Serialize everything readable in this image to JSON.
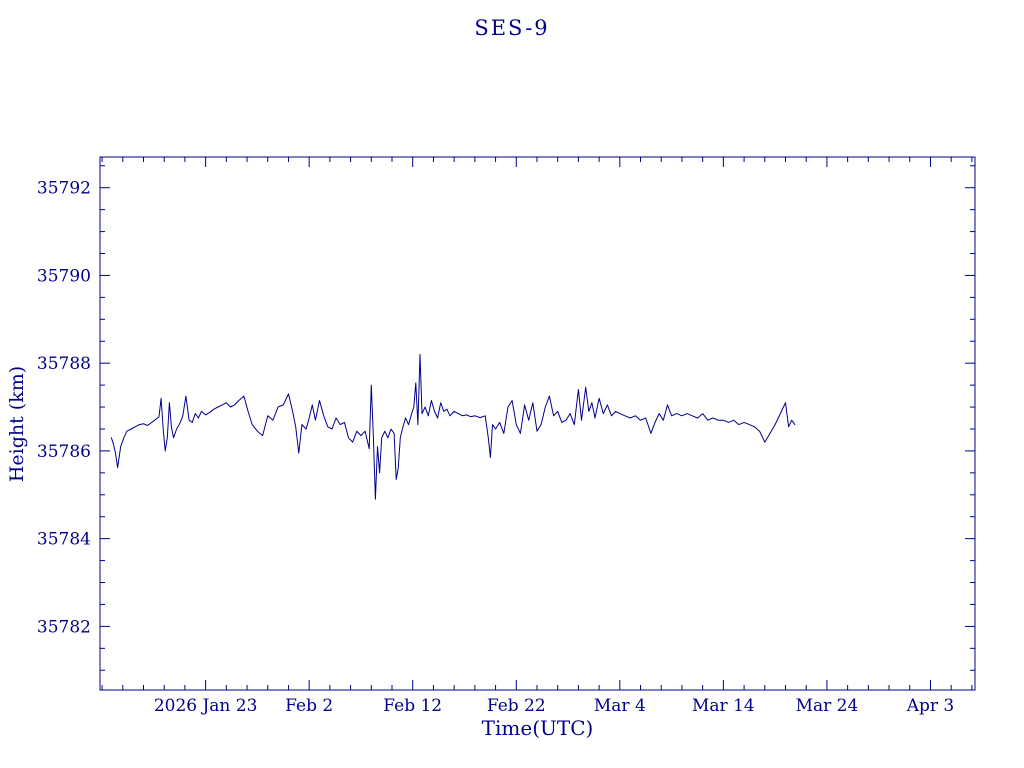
{
  "chart_data": {
    "type": "line",
    "title": "SES-9",
    "xlabel": "Time(UTC)",
    "ylabel": "Height (km)",
    "color": "#00008B",
    "background": "#ffffff",
    "grid": false,
    "legend": "none",
    "x_axis": {
      "description": "time in days, 0 = 2026 Jan 13, read from tick labels",
      "min": -0.2,
      "max": 84.3,
      "minor_step": 2,
      "ticks": [
        10,
        20,
        30,
        40,
        50,
        60,
        70,
        80
      ],
      "tick_labels": [
        "2026 Jan 23",
        "Feb 2",
        "Feb 12",
        "Feb 22",
        "Mar 4",
        "Mar 14",
        "Mar 24",
        "Apr 3"
      ]
    },
    "y_axis": {
      "min": 35780.55,
      "max": 35792.7,
      "minor_step": 0.5,
      "ticks": [
        35782,
        35784,
        35786,
        35788,
        35790,
        35792
      ],
      "tick_labels": [
        "35782",
        "35784",
        "35786",
        "35788",
        "35790",
        "35792"
      ]
    },
    "series": [
      {
        "name": "height",
        "points": [
          [
            0.9,
            35786.3
          ],
          [
            1.1,
            35786.15
          ],
          [
            1.3,
            35785.95
          ],
          [
            1.5,
            35785.62
          ],
          [
            1.8,
            35786.1
          ],
          [
            2.1,
            35786.3
          ],
          [
            2.4,
            35786.45
          ],
          [
            2.8,
            35786.5
          ],
          [
            3.2,
            35786.55
          ],
          [
            3.6,
            35786.6
          ],
          [
            4.0,
            35786.62
          ],
          [
            4.4,
            35786.58
          ],
          [
            4.8,
            35786.65
          ],
          [
            5.2,
            35786.72
          ],
          [
            5.5,
            35786.78
          ],
          [
            5.7,
            35787.2
          ],
          [
            5.9,
            35786.5
          ],
          [
            6.1,
            35786.0
          ],
          [
            6.3,
            35786.3
          ],
          [
            6.5,
            35787.1
          ],
          [
            6.7,
            35786.55
          ],
          [
            6.9,
            35786.3
          ],
          [
            7.2,
            35786.5
          ],
          [
            7.5,
            35786.62
          ],
          [
            7.8,
            35786.8
          ],
          [
            8.1,
            35787.25
          ],
          [
            8.4,
            35786.7
          ],
          [
            8.7,
            35786.65
          ],
          [
            9.0,
            35786.85
          ],
          [
            9.3,
            35786.75
          ],
          [
            9.6,
            35786.9
          ],
          [
            10.0,
            35786.82
          ],
          [
            10.4,
            35786.88
          ],
          [
            10.8,
            35786.95
          ],
          [
            11.2,
            35787.0
          ],
          [
            11.6,
            35787.05
          ],
          [
            12.0,
            35787.1
          ],
          [
            12.4,
            35787.0
          ],
          [
            12.8,
            35787.05
          ],
          [
            13.2,
            35787.15
          ],
          [
            13.7,
            35787.25
          ],
          [
            14.1,
            35786.9
          ],
          [
            14.5,
            35786.6
          ],
          [
            15.0,
            35786.45
          ],
          [
            15.5,
            35786.35
          ],
          [
            16.0,
            35786.8
          ],
          [
            16.5,
            35786.7
          ],
          [
            17.0,
            35787.0
          ],
          [
            17.5,
            35787.05
          ],
          [
            18.0,
            35787.3
          ],
          [
            18.4,
            35786.9
          ],
          [
            18.7,
            35786.55
          ],
          [
            19.0,
            35785.95
          ],
          [
            19.3,
            35786.6
          ],
          [
            19.7,
            35786.5
          ],
          [
            20.0,
            35786.75
          ],
          [
            20.3,
            35787.05
          ],
          [
            20.6,
            35786.7
          ],
          [
            21.0,
            35787.15
          ],
          [
            21.4,
            35786.8
          ],
          [
            21.8,
            35786.55
          ],
          [
            22.2,
            35786.5
          ],
          [
            22.6,
            35786.75
          ],
          [
            23.0,
            35786.6
          ],
          [
            23.4,
            35786.65
          ],
          [
            23.8,
            35786.3
          ],
          [
            24.2,
            35786.2
          ],
          [
            24.6,
            35786.45
          ],
          [
            25.0,
            35786.35
          ],
          [
            25.4,
            35786.45
          ],
          [
            25.8,
            35786.05
          ],
          [
            26.0,
            35787.5
          ],
          [
            26.2,
            35786.3
          ],
          [
            26.4,
            35784.9
          ],
          [
            26.6,
            35786.1
          ],
          [
            26.8,
            35785.5
          ],
          [
            27.0,
            35786.3
          ],
          [
            27.3,
            35786.45
          ],
          [
            27.6,
            35786.3
          ],
          [
            27.9,
            35786.5
          ],
          [
            28.2,
            35786.4
          ],
          [
            28.4,
            35785.35
          ],
          [
            28.6,
            35785.6
          ],
          [
            28.8,
            35786.3
          ],
          [
            29.0,
            35786.5
          ],
          [
            29.3,
            35786.75
          ],
          [
            29.6,
            35786.6
          ],
          [
            29.9,
            35786.85
          ],
          [
            30.1,
            35787.0
          ],
          [
            30.3,
            35787.55
          ],
          [
            30.5,
            35786.6
          ],
          [
            30.7,
            35788.2
          ],
          [
            30.9,
            35786.85
          ],
          [
            31.2,
            35787.0
          ],
          [
            31.5,
            35786.8
          ],
          [
            31.8,
            35787.15
          ],
          [
            32.1,
            35786.9
          ],
          [
            32.4,
            35786.75
          ],
          [
            32.7,
            35787.1
          ],
          [
            33.0,
            35786.9
          ],
          [
            33.3,
            35786.95
          ],
          [
            33.6,
            35786.8
          ],
          [
            34.0,
            35786.9
          ],
          [
            34.4,
            35786.85
          ],
          [
            34.8,
            35786.8
          ],
          [
            35.2,
            35786.82
          ],
          [
            35.6,
            35786.78
          ],
          [
            36.0,
            35786.8
          ],
          [
            36.5,
            35786.76
          ],
          [
            37.0,
            35786.8
          ],
          [
            37.3,
            35786.3
          ],
          [
            37.5,
            35785.85
          ],
          [
            37.7,
            35786.6
          ],
          [
            38.0,
            35786.5
          ],
          [
            38.4,
            35786.65
          ],
          [
            38.8,
            35786.4
          ],
          [
            39.2,
            35787.0
          ],
          [
            39.6,
            35787.15
          ],
          [
            40.0,
            35786.6
          ],
          [
            40.4,
            35786.4
          ],
          [
            40.8,
            35787.05
          ],
          [
            41.2,
            35786.7
          ],
          [
            41.6,
            35787.1
          ],
          [
            42.0,
            35786.45
          ],
          [
            42.4,
            35786.6
          ],
          [
            42.8,
            35787.0
          ],
          [
            43.2,
            35787.25
          ],
          [
            43.6,
            35786.8
          ],
          [
            44.0,
            35786.9
          ],
          [
            44.4,
            35786.65
          ],
          [
            44.8,
            35786.7
          ],
          [
            45.2,
            35786.85
          ],
          [
            45.6,
            35786.6
          ],
          [
            46.0,
            35787.4
          ],
          [
            46.3,
            35786.7
          ],
          [
            46.7,
            35787.45
          ],
          [
            47.0,
            35786.9
          ],
          [
            47.3,
            35787.1
          ],
          [
            47.6,
            35786.75
          ],
          [
            48.0,
            35787.2
          ],
          [
            48.4,
            35786.85
          ],
          [
            48.8,
            35787.05
          ],
          [
            49.2,
            35786.8
          ],
          [
            49.6,
            35786.9
          ],
          [
            50.0,
            35786.85
          ],
          [
            50.5,
            35786.8
          ],
          [
            51.0,
            35786.75
          ],
          [
            51.5,
            35786.8
          ],
          [
            52.0,
            35786.7
          ],
          [
            52.5,
            35786.75
          ],
          [
            53.0,
            35786.4
          ],
          [
            53.4,
            35786.65
          ],
          [
            53.8,
            35786.85
          ],
          [
            54.2,
            35786.7
          ],
          [
            54.6,
            35787.05
          ],
          [
            55.0,
            35786.8
          ],
          [
            55.5,
            35786.85
          ],
          [
            56.0,
            35786.8
          ],
          [
            56.5,
            35786.85
          ],
          [
            57.0,
            35786.8
          ],
          [
            57.5,
            35786.75
          ],
          [
            58.0,
            35786.85
          ],
          [
            58.5,
            35786.7
          ],
          [
            59.0,
            35786.75
          ],
          [
            59.5,
            35786.7
          ],
          [
            60.0,
            35786.7
          ],
          [
            60.5,
            35786.65
          ],
          [
            61.0,
            35786.7
          ],
          [
            61.5,
            35786.6
          ],
          [
            62.0,
            35786.65
          ],
          [
            62.5,
            35786.6
          ],
          [
            63.0,
            35786.55
          ],
          [
            63.5,
            35786.45
          ],
          [
            64.0,
            35786.2
          ],
          [
            64.5,
            35786.4
          ],
          [
            65.0,
            35786.6
          ],
          [
            65.5,
            35786.85
          ],
          [
            66.0,
            35787.1
          ],
          [
            66.3,
            35786.55
          ],
          [
            66.6,
            35786.7
          ],
          [
            66.9,
            35786.6
          ]
        ]
      }
    ]
  }
}
